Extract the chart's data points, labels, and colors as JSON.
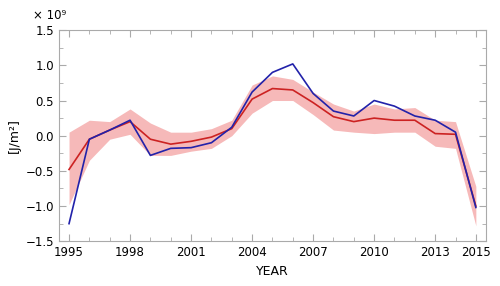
{
  "title_exponent": "× 10⁹",
  "xlabel": "YEAR",
  "ylabel": "[J/m²]",
  "xlim": [
    1994.5,
    2015.5
  ],
  "ylim": [
    -1.5,
    1.5
  ],
  "yticks": [
    -1.5,
    -1.0,
    -0.5,
    0.0,
    0.5,
    1.0,
    1.5
  ],
  "xticks": [
    1995,
    1998,
    2001,
    2004,
    2007,
    2010,
    2013,
    2015
  ],
  "blue_years": [
    1995,
    1996,
    1997,
    1998,
    1999,
    2000,
    2001,
    2002,
    2003,
    2004,
    2005,
    2006,
    2007,
    2008,
    2009,
    2010,
    2011,
    2012,
    2013,
    2014,
    2015
  ],
  "blue_values": [
    -1.25,
    -0.05,
    0.08,
    0.22,
    -0.28,
    -0.18,
    -0.17,
    -0.1,
    0.12,
    0.62,
    0.9,
    1.02,
    0.6,
    0.35,
    0.28,
    0.5,
    0.42,
    0.28,
    0.22,
    0.05,
    -1.02
  ],
  "red_years": [
    1995,
    1996,
    1997,
    1998,
    1999,
    2000,
    2001,
    2002,
    2003,
    2004,
    2005,
    2006,
    2007,
    2008,
    2009,
    2010,
    2011,
    2012,
    2013,
    2014,
    2015
  ],
  "red_values": [
    -0.48,
    -0.05,
    0.08,
    0.2,
    -0.05,
    -0.12,
    -0.08,
    -0.02,
    0.1,
    0.52,
    0.67,
    0.65,
    0.47,
    0.27,
    0.2,
    0.25,
    0.22,
    0.22,
    0.03,
    0.02,
    -1.0
  ],
  "uncertainty_upper": [
    0.05,
    0.22,
    0.2,
    0.38,
    0.18,
    0.05,
    0.05,
    0.1,
    0.22,
    0.72,
    0.85,
    0.8,
    0.62,
    0.45,
    0.35,
    0.45,
    0.38,
    0.4,
    0.22,
    0.2,
    -0.72
  ],
  "uncertainty_lower": [
    -0.98,
    -0.35,
    -0.05,
    0.02,
    -0.28,
    -0.28,
    -0.22,
    -0.18,
    0.0,
    0.32,
    0.5,
    0.5,
    0.3,
    0.08,
    0.05,
    0.03,
    0.05,
    0.05,
    -0.15,
    -0.18,
    -1.28
  ],
  "blue_color": "#2222aa",
  "red_color": "#cc2222",
  "fill_color": "#f08080",
  "fill_alpha": 0.55,
  "background_color": "#ffffff",
  "line_width": 1.2,
  "spine_color": "#aaaaaa",
  "tick_color": "#555555",
  "label_fontsize": 9,
  "tick_fontsize": 8.5
}
